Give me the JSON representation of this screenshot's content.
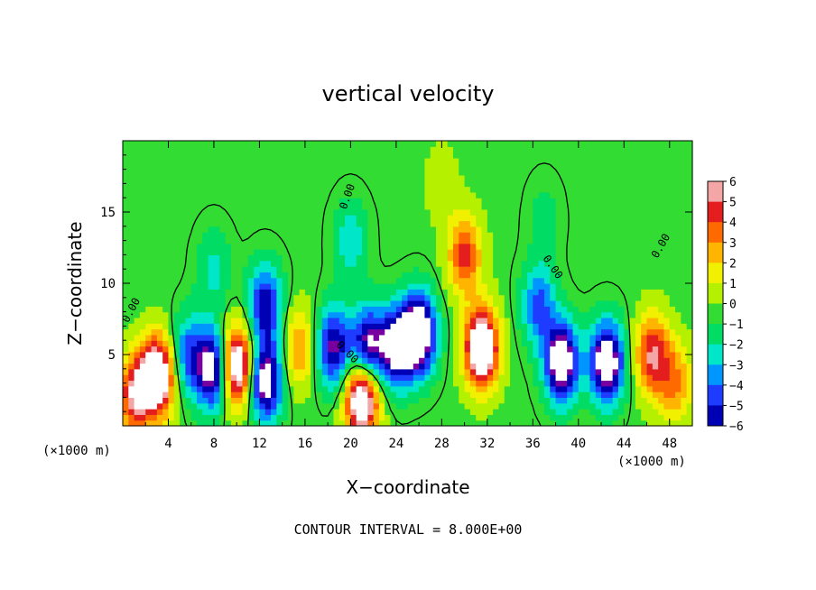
{
  "chart_data": {
    "type": "heatmap",
    "title": "vertical velocity",
    "xlabel": "X−coordinate",
    "ylabel": "Z−coordinate",
    "x_unit_left": "(×1000 m)",
    "x_unit_right": "(×1000 m)",
    "xlim": [
      0,
      50
    ],
    "ylim": [
      0,
      20
    ],
    "x_ticks": [
      4,
      8,
      12,
      16,
      20,
      24,
      28,
      32,
      36,
      40,
      44,
      48
    ],
    "y_ticks": [
      5,
      10,
      15
    ],
    "colorbar": {
      "levels": [
        "6",
        "5",
        "4",
        "3",
        "2",
        "1",
        "0",
        "−1",
        "−2",
        "−3",
        "−4",
        "−5",
        "−6"
      ],
      "colors": [
        "#f4a6a6",
        "#e41e1e",
        "#ff6a00",
        "#ffb400",
        "#f0f000",
        "#b4f000",
        "#32dc32",
        "#00dc64",
        "#00e6c8",
        "#0096ff",
        "#1e3cff",
        "#0000b4",
        "#7800a0"
      ]
    },
    "contour_label": "0.00",
    "contour_interval_text": "CONTOUR INTERVAL = 8.000E+00",
    "features": [
      {
        "x": 3.0,
        "z": 3.5,
        "w": 6.5
      },
      {
        "x": 1.0,
        "z": 2.2,
        "w": 4.0
      },
      {
        "x": 5.8,
        "z": 5.0,
        "w": -3.0
      },
      {
        "x": 10.0,
        "z": 4.2,
        "w": 6.5
      },
      {
        "x": 8.0,
        "z": 4.0,
        "w": -5.5
      },
      {
        "x": 12.5,
        "z": 3.2,
        "w": -5.5
      },
      {
        "x": 12.5,
        "z": 8.5,
        "w": -4.0
      },
      {
        "x": 15.5,
        "z": 5.5,
        "w": 2.5
      },
      {
        "x": 18.5,
        "z": 5.5,
        "w": -4.5
      },
      {
        "x": 21.0,
        "z": 2.0,
        "w": 6.5
      },
      {
        "x": 21.5,
        "z": 5.5,
        "w": -5.0
      },
      {
        "x": 24.0,
        "z": 5.5,
        "w": -5.0
      },
      {
        "x": 26.0,
        "z": 6.5,
        "w": -6.5
      },
      {
        "x": 31.5,
        "z": 5.5,
        "w": 6.5
      },
      {
        "x": 30.0,
        "z": 12.0,
        "w": 3.5
      },
      {
        "x": 36.5,
        "z": 8.5,
        "w": -3.0
      },
      {
        "x": 38.5,
        "z": 4.5,
        "w": -6.0
      },
      {
        "x": 42.5,
        "z": 4.5,
        "w": -6.0
      },
      {
        "x": 46.5,
        "z": 5.0,
        "w": 4.0
      },
      {
        "x": 48.5,
        "z": 3.0,
        "w": 2.5
      },
      {
        "x": 20.0,
        "z": 13.0,
        "w": -1.8
      },
      {
        "x": 8.0,
        "z": 11.0,
        "w": -1.5
      },
      {
        "x": 37.0,
        "z": 14.5,
        "w": -0.8
      },
      {
        "x": 28.0,
        "z": 17.0,
        "w": 0.8
      }
    ]
  }
}
